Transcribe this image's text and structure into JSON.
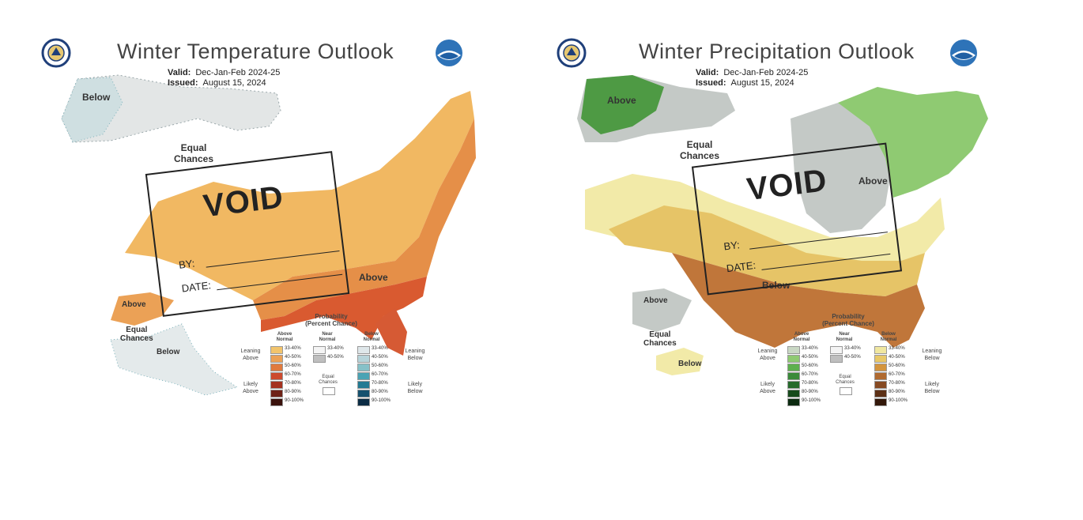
{
  "maps": [
    {
      "id": "temperature",
      "title": "Winter  Temperature Outlook",
      "valid_label": "Valid:",
      "valid_value": "Dec-Jan-Feb 2024-25",
      "issued_label": "Issued:",
      "issued_value": "August 15, 2024",
      "regions": {
        "alaska_north": "Below",
        "ec_main": [
          "Equal",
          "Chances"
        ],
        "southeast": "Above",
        "ak_south_above": "Above",
        "ak_ec": [
          "Equal",
          "Chances"
        ],
        "ak_below": "Below"
      },
      "stamp": {
        "void": "VOID",
        "by": "BY:",
        "date": "DATE:"
      },
      "legend": {
        "title": [
          "Probability",
          "(Percent Chance)"
        ],
        "col_heads": [
          [
            "Above",
            "Normal"
          ],
          [
            "Near",
            "Normal"
          ],
          [
            "Below",
            "Normal"
          ]
        ],
        "left_leaning": [
          "Leaning",
          "Above"
        ],
        "left_likely": [
          "Likely",
          "Above"
        ],
        "right_leaning": [
          "Leaning",
          "Below"
        ],
        "right_likely": [
          "Likely",
          "Below"
        ],
        "ec": [
          "Equal",
          "Chances"
        ],
        "above_ranges": [
          "33-40%",
          "40-50%",
          "50-60%",
          "60-70%",
          "70-80%",
          "80-90%",
          "90-100%"
        ],
        "near_ranges": [
          "33-40%",
          "40-50%"
        ],
        "below_ranges": [
          "33-40%",
          "40-50%",
          "50-60%",
          "60-70%",
          "70-80%",
          "80-90%",
          "90-100%"
        ],
        "above_colors": [
          "#f2c46c",
          "#eba156",
          "#e07a3e",
          "#cc4a2e",
          "#a4311f",
          "#6e2217",
          "#3a120c"
        ],
        "near_colors": [
          "#f4f4f4",
          "#bfbfbf"
        ],
        "below_colors": [
          "#dfe7ea",
          "#b7d4da",
          "#86c1c8",
          "#4aa3b4",
          "#227a93",
          "#16516e",
          "#0b2c44"
        ]
      },
      "colors": {
        "ec": "#ffffff",
        "above_low": "#f0b45a",
        "above_mid": "#e58f48",
        "above_high": "#d95a30",
        "below_low": "#dfe3e4",
        "below_mid": "#cddcde"
      }
    },
    {
      "id": "precipitation",
      "title": "Winter  Precipitation Outlook",
      "valid_label": "Valid:",
      "valid_value": "Dec-Jan-Feb 2024-25",
      "issued_label": "Issued:",
      "issued_value": "August 15, 2024",
      "regions": {
        "pnw_above": "Above",
        "ec_main": [
          "Equal",
          "Chances"
        ],
        "great_lakes_above": "Above",
        "south_below": "Below",
        "ak_above": "Above",
        "ak_ec": [
          "Equal",
          "Chances"
        ],
        "ak_below": "Below"
      },
      "stamp": {
        "void": "VOID",
        "by": "BY:",
        "date": "DATE:"
      },
      "legend": {
        "title": [
          "Probability",
          "(Percent Chance)"
        ],
        "col_heads": [
          [
            "Above",
            "Normal"
          ],
          [
            "Near",
            "Normal"
          ],
          [
            "Below",
            "Normal"
          ]
        ],
        "left_leaning": [
          "Leaning",
          "Above"
        ],
        "left_likely": [
          "Likely",
          "Above"
        ],
        "right_leaning": [
          "Leaning",
          "Below"
        ],
        "right_likely": [
          "Likely",
          "Below"
        ],
        "ec": [
          "Equal",
          "Chances"
        ],
        "above_ranges": [
          "33-40%",
          "40-50%",
          "50-60%",
          "60-70%",
          "70-80%",
          "80-90%",
          "90-100%"
        ],
        "near_ranges": [
          "33-40%",
          "40-50%"
        ],
        "below_ranges": [
          "33-40%",
          "40-50%",
          "50-60%",
          "60-70%",
          "70-80%",
          "80-90%",
          "90-100%"
        ],
        "above_colors": [
          "#c9d8c4",
          "#8fca72",
          "#5eb04e",
          "#3a8a3a",
          "#266a2b",
          "#174a1c",
          "#0b2a10"
        ],
        "near_colors": [
          "#f4f4f4",
          "#bfbfbf"
        ],
        "below_colors": [
          "#f0e7a0",
          "#e8c868",
          "#d4953e",
          "#b06a30",
          "#864a22",
          "#5c3016",
          "#33180a"
        ]
      },
      "colors": {
        "ec": "#ffffff",
        "wet_light": "#8fca72",
        "wet_gray": "#c4c9c6",
        "wet_dark": "#4e9a44",
        "dry_light": "#f2eaa8",
        "dry_mid": "#e6c467",
        "dry_high": "#c0763a"
      }
    }
  ]
}
